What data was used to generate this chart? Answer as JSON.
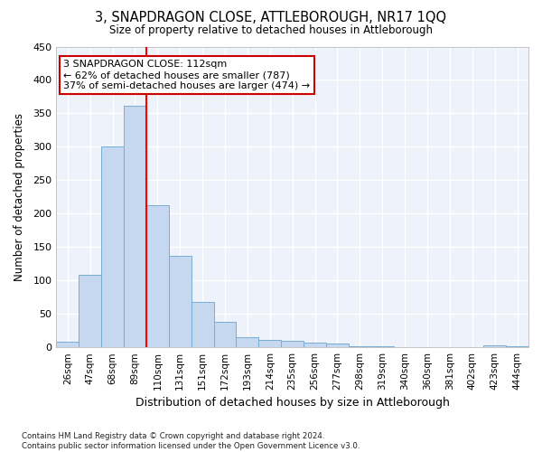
{
  "title": "3, SNAPDRAGON CLOSE, ATTLEBOROUGH, NR17 1QQ",
  "subtitle": "Size of property relative to detached houses in Attleborough",
  "xlabel": "Distribution of detached houses by size in Attleborough",
  "ylabel": "Number of detached properties",
  "categories": [
    "26sqm",
    "47sqm",
    "68sqm",
    "89sqm",
    "110sqm",
    "131sqm",
    "151sqm",
    "172sqm",
    "193sqm",
    "214sqm",
    "235sqm",
    "256sqm",
    "277sqm",
    "298sqm",
    "319sqm",
    "340sqm",
    "360sqm",
    "381sqm",
    "402sqm",
    "423sqm",
    "444sqm"
  ],
  "values": [
    8,
    108,
    301,
    361,
    213,
    137,
    68,
    38,
    15,
    11,
    10,
    7,
    5,
    2,
    1,
    0,
    0,
    0,
    0,
    3,
    1
  ],
  "bar_color": "#c5d8ef",
  "bar_edge_color": "#7aadd4",
  "background_color": "#eef2fb",
  "grid_color": "#ffffff",
  "red_line_index": 4,
  "annotation_line1": "3 SNAPDRAGON CLOSE: 112sqm",
  "annotation_line2": "← 62% of detached houses are smaller (787)",
  "annotation_line3": "37% of semi-detached houses are larger (474) →",
  "annotation_box_facecolor": "#ffffff",
  "annotation_box_edgecolor": "#cc0000",
  "footer_text": "Contains HM Land Registry data © Crown copyright and database right 2024.\nContains public sector information licensed under the Open Government Licence v3.0.",
  "fig_facecolor": "#ffffff",
  "ylim": [
    0,
    450
  ],
  "yticks": [
    0,
    50,
    100,
    150,
    200,
    250,
    300,
    350,
    400,
    450
  ]
}
